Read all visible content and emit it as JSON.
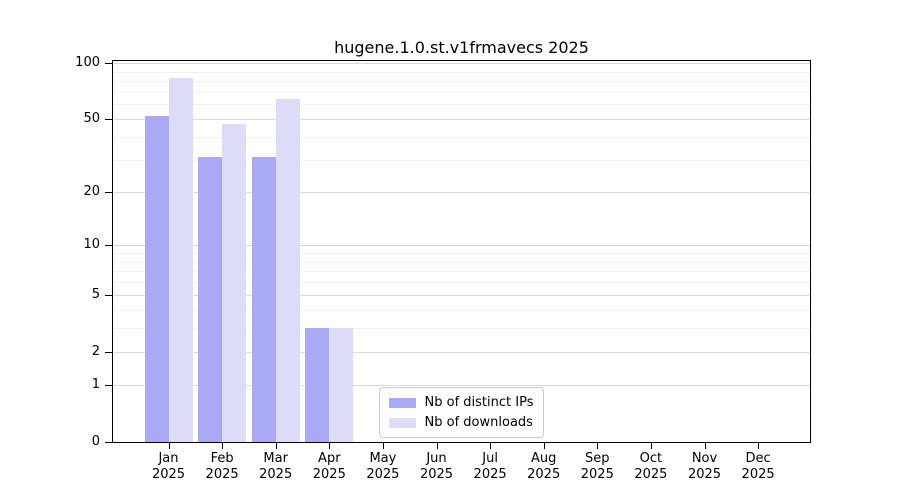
{
  "chart_data": {
    "type": "bar",
    "title": "hugene.1.0.st.v1frmavecs 2025",
    "categories": [
      "Jan 2025",
      "Feb 2025",
      "Mar 2025",
      "Apr 2025",
      "May 2025",
      "Jun 2025",
      "Jul 2025",
      "Aug 2025",
      "Sep 2025",
      "Oct 2025",
      "Nov 2025",
      "Dec 2025"
    ],
    "series": [
      {
        "name": "Nb of distinct IPs",
        "color": "#a9a9f5",
        "values": [
          52,
          31,
          31,
          3,
          0,
          0,
          0,
          0,
          0,
          0,
          0,
          0
        ]
      },
      {
        "name": "Nb of downloads",
        "color": "#dcdcf8",
        "values": [
          83,
          47,
          64,
          3,
          0,
          0,
          0,
          0,
          0,
          0,
          0,
          0
        ]
      }
    ],
    "y_axis": {
      "scale": "log1p",
      "ticks": [
        0,
        1,
        2,
        5,
        10,
        20,
        50,
        100
      ],
      "minor_gridlines": [
        3,
        4,
        6,
        7,
        8,
        9,
        30,
        40,
        60,
        70,
        80,
        90
      ],
      "ylim": [
        0,
        100
      ]
    },
    "xlabel": "",
    "ylabel": "",
    "grid": "horizontal",
    "legend_position": "lower center"
  },
  "colors": {
    "bar_distinct_ips": "#a9a9f5",
    "bar_downloads": "#dcdcf8",
    "grid_major": "#d9d9d9",
    "grid_minor": "#f0f0f0",
    "axis": "#000000",
    "legend_border": "#cccccc"
  }
}
